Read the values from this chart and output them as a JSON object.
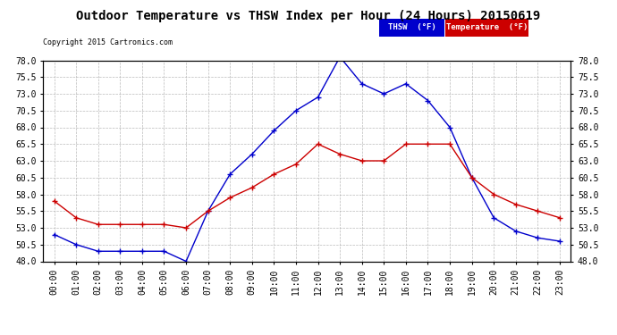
{
  "title": "Outdoor Temperature vs THSW Index per Hour (24 Hours) 20150619",
  "copyright": "Copyright 2015 Cartronics.com",
  "hours": [
    "00:00",
    "01:00",
    "02:00",
    "03:00",
    "04:00",
    "05:00",
    "06:00",
    "07:00",
    "08:00",
    "09:00",
    "10:00",
    "11:00",
    "12:00",
    "13:00",
    "14:00",
    "15:00",
    "16:00",
    "17:00",
    "18:00",
    "19:00",
    "20:00",
    "21:00",
    "22:00",
    "23:00"
  ],
  "thsw": [
    52.0,
    50.5,
    49.5,
    49.5,
    49.5,
    49.5,
    48.0,
    55.5,
    61.0,
    64.0,
    67.5,
    70.5,
    72.5,
    78.5,
    74.5,
    73.0,
    74.5,
    72.0,
    68.0,
    60.5,
    54.5,
    52.5,
    51.5,
    51.0
  ],
  "temperature": [
    57.0,
    54.5,
    53.5,
    53.5,
    53.5,
    53.5,
    53.0,
    55.5,
    57.5,
    59.0,
    61.0,
    62.5,
    65.5,
    64.0,
    63.0,
    63.0,
    65.5,
    65.5,
    65.5,
    60.5,
    58.0,
    56.5,
    55.5,
    54.5
  ],
  "thsw_color": "#0000cc",
  "temp_color": "#cc0000",
  "bg_color": "#ffffff",
  "grid_color": "#aaaaaa",
  "ylim": [
    48.0,
    78.0
  ],
  "yticks": [
    48.0,
    50.5,
    53.0,
    55.5,
    58.0,
    60.5,
    63.0,
    65.5,
    68.0,
    70.5,
    73.0,
    75.5,
    78.0
  ],
  "legend_thsw_bg": "#0000cc",
  "legend_temp_bg": "#cc0000",
  "title_fontsize": 10,
  "tick_fontsize": 7,
  "copy_fontsize": 6
}
